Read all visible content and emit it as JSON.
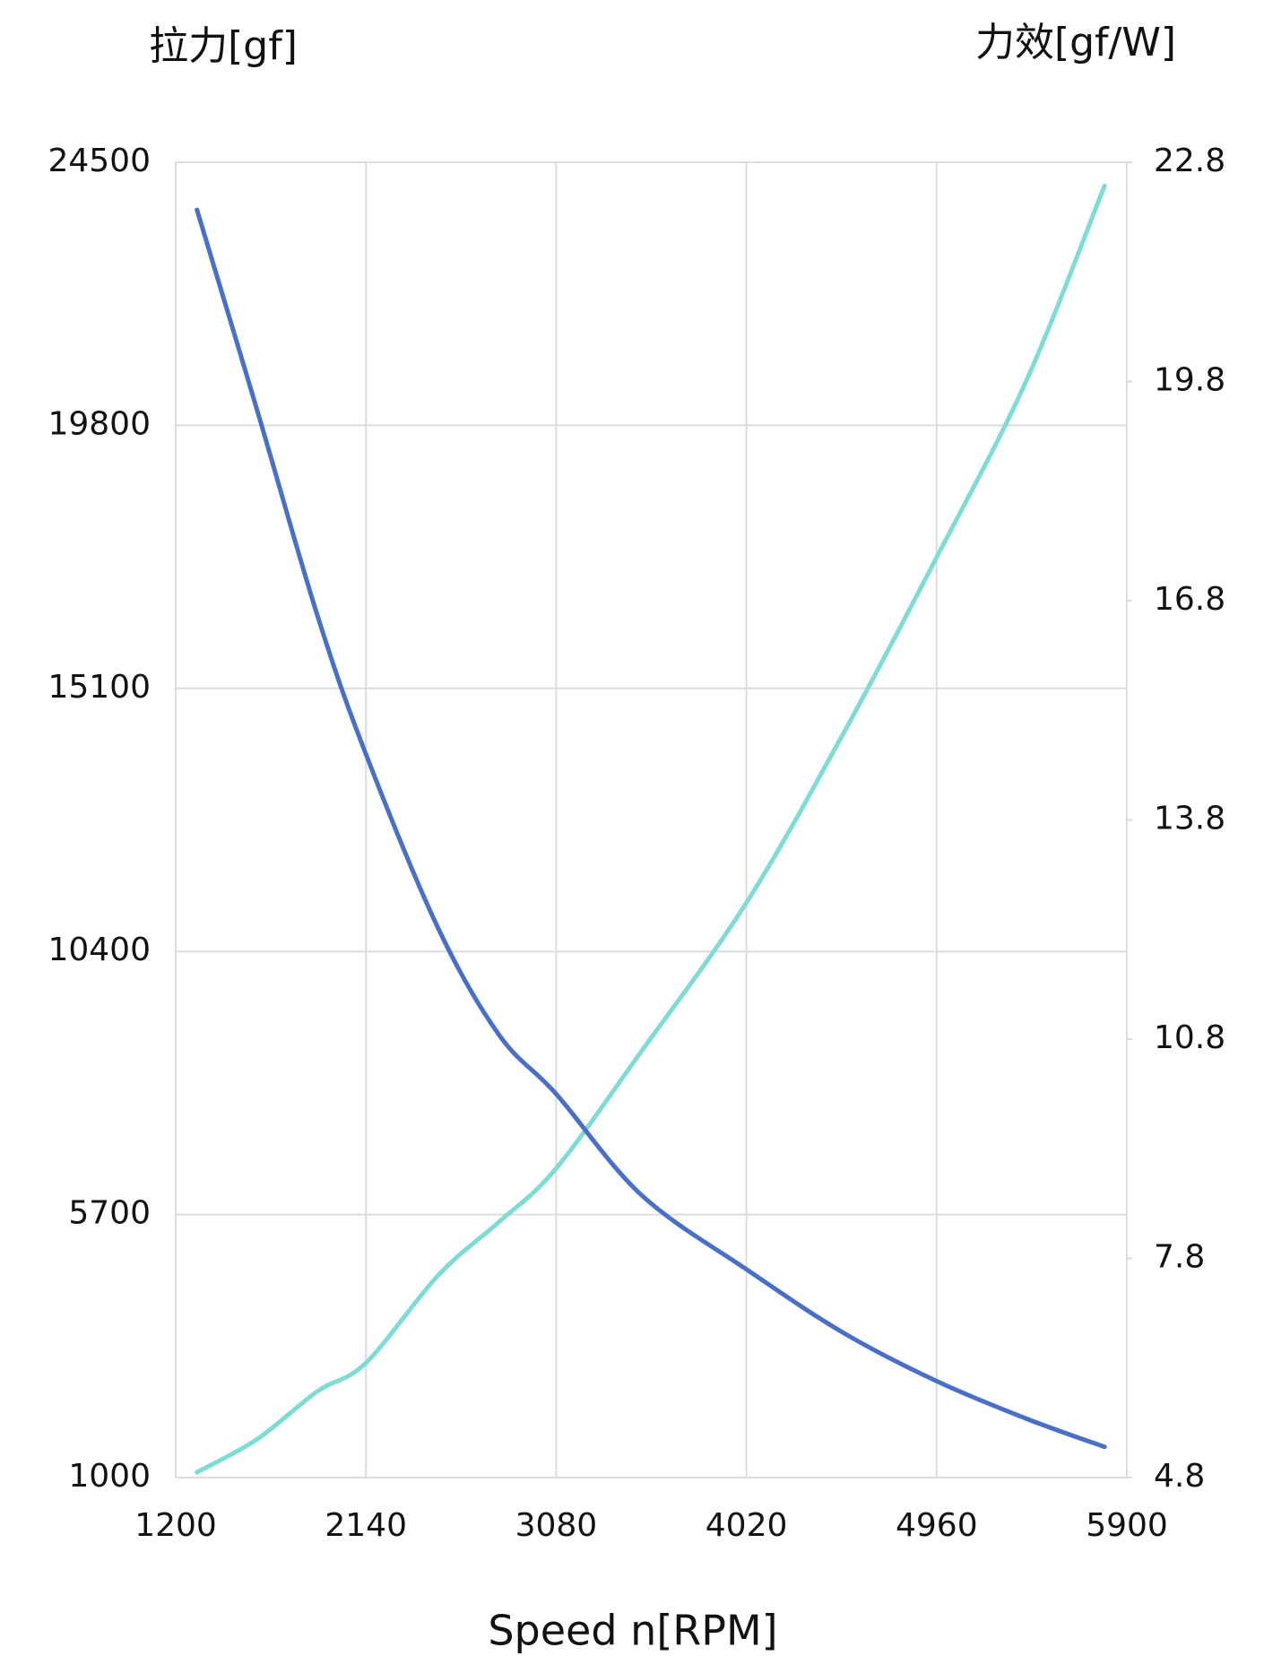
{
  "chart_data": {
    "type": "line",
    "y_title": "拉力[gf]",
    "y2_title": "力效[gf/W]",
    "x_title": "Speed n[RPM]",
    "x": [
      1305,
      1600,
      1900,
      2140,
      2500,
      2800,
      3080,
      3500,
      4020,
      4500,
      4960,
      5400,
      5790
    ],
    "series": [
      {
        "name": "拉力[gf]",
        "color": "#7fdcd4",
        "values": [
          1095,
          1680,
          2540,
          3050,
          4625,
          5575,
          6524,
          8610,
          11270,
          14300,
          17440,
          20570,
          24080
        ]
      },
      {
        "name": "力效[gf/W]",
        "color": "#4a6fc7",
        "axis": "y2",
        "values": [
          22.15,
          19.43,
          16.6,
          14.7,
          12.3,
          10.85,
          10.05,
          8.67,
          7.65,
          6.78,
          6.12,
          5.61,
          5.22
        ]
      }
    ],
    "xlim": [
      1200,
      5900
    ],
    "xticks": [
      1200,
      2140,
      3080,
      4020,
      4960,
      5900
    ],
    "ylim": [
      1000,
      24500
    ],
    "yticks": [
      1000,
      5700,
      10400,
      15100,
      19800,
      24500
    ],
    "y2lim": [
      4.8,
      22.8
    ],
    "y2ticks": [
      4.8,
      7.8,
      10.8,
      13.8,
      16.8,
      19.8,
      22.8
    ],
    "grid": true
  }
}
